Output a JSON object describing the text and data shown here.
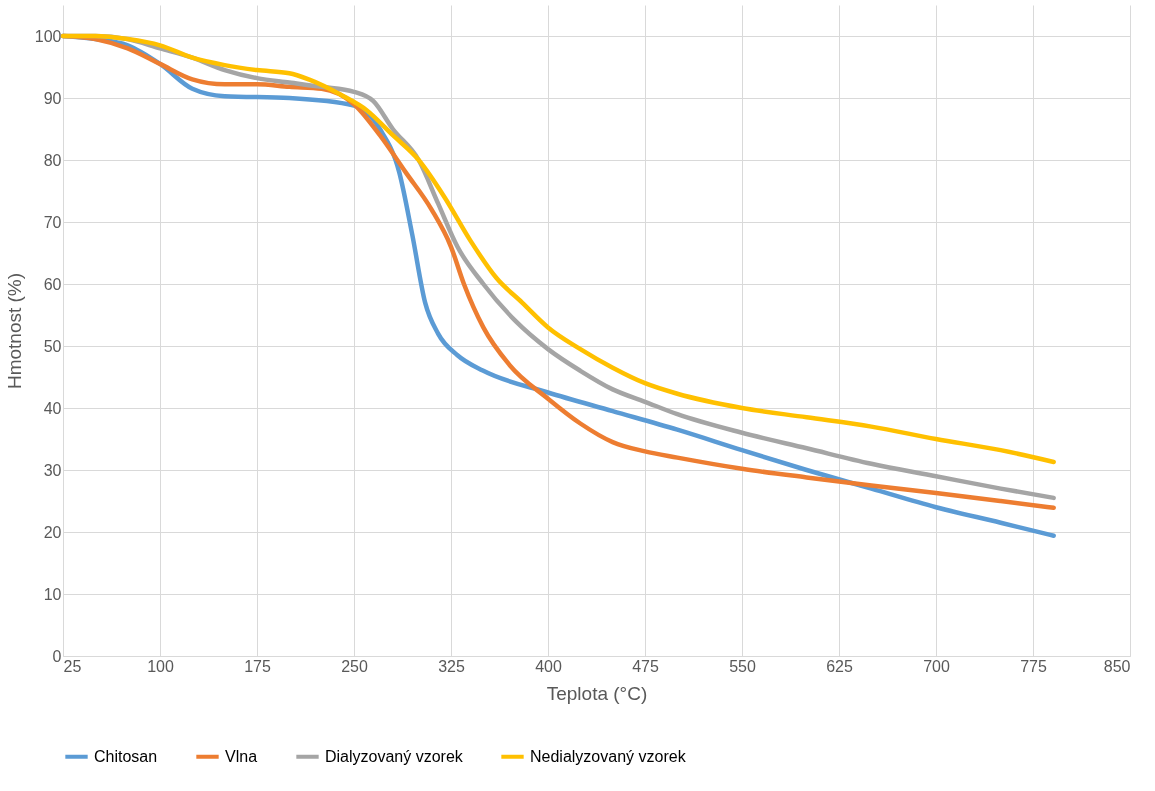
{
  "chart_data": {
    "type": "line",
    "xlabel": "Teplota (°C)",
    "ylabel": "Hmotnost (%)",
    "xlim": [
      25,
      850
    ],
    "xticks": [
      25,
      100,
      175,
      250,
      325,
      400,
      475,
      550,
      625,
      700,
      775,
      850
    ],
    "ylim": [
      0,
      105
    ],
    "yticks": [
      0,
      10,
      20,
      30,
      40,
      50,
      60,
      70,
      80,
      90,
      100
    ],
    "grid": true,
    "legend": "bottom",
    "marker": "none",
    "line_style": "solid",
    "series": [
      {
        "name": "Chitosan",
        "color": "#5b9bd5",
        "x": [
          25,
          50,
          75,
          100,
          125,
          150,
          200,
          250,
          270,
          285,
          295,
          305,
          315,
          330,
          350,
          400,
          450,
          500,
          550,
          600,
          650,
          700,
          750,
          791
        ],
        "values": [
          100,
          99.5,
          98.5,
          95.5,
          91.5,
          90.3,
          90,
          88.8,
          85,
          78,
          68,
          57,
          52,
          48.5,
          46,
          42.5,
          39.5,
          36.5,
          33.2,
          30,
          27,
          24,
          21.5,
          19.4
        ]
      },
      {
        "name": "Vlna",
        "color": "#ed7d31",
        "x": [
          25,
          50,
          75,
          100,
          125,
          150,
          175,
          200,
          225,
          250,
          270,
          290,
          310,
          325,
          335,
          350,
          370,
          400,
          425,
          450,
          475,
          500,
          550,
          600,
          650,
          700,
          750,
          791
        ],
        "values": [
          100,
          99.5,
          98,
          95.5,
          93,
          92.2,
          92.2,
          91.8,
          91.5,
          89,
          84,
          78,
          72,
          66,
          60,
          53,
          47,
          41.5,
          37.5,
          34.5,
          33,
          32,
          30.2,
          28.8,
          27.5,
          26.3,
          25,
          23.9
        ]
      },
      {
        "name": "Dialyzovaný vzorek",
        "color": "#a5a5a5",
        "x": [
          25,
          50,
          75,
          100,
          125,
          150,
          175,
          200,
          225,
          250,
          265,
          280,
          300,
          315,
          330,
          350,
          375,
          400,
          425,
          450,
          475,
          500,
          550,
          600,
          650,
          700,
          750,
          791
        ],
        "values": [
          100,
          100,
          99.5,
          98,
          96.5,
          94.5,
          93.2,
          92.5,
          91.8,
          91,
          89.5,
          85,
          80,
          73,
          66,
          60,
          54,
          49.5,
          46,
          43,
          41,
          39,
          36,
          33.5,
          31,
          29,
          27,
          25.5
        ]
      },
      {
        "name": "Nedialyzovaný vzorek",
        "color": "#ffc000",
        "x": [
          25,
          50,
          75,
          100,
          125,
          150,
          175,
          200,
          215,
          240,
          260,
          280,
          300,
          320,
          340,
          360,
          380,
          400,
          425,
          450,
          475,
          500,
          550,
          600,
          650,
          700,
          750,
          791
        ],
        "values": [
          100,
          100,
          99.5,
          98.5,
          96.5,
          95.3,
          94.5,
          94,
          93,
          90.5,
          88,
          84,
          80,
          74,
          67,
          61,
          57,
          53,
          49.5,
          46.5,
          44,
          42.3,
          40,
          38.5,
          37,
          35,
          33.2,
          31.3
        ]
      }
    ]
  }
}
